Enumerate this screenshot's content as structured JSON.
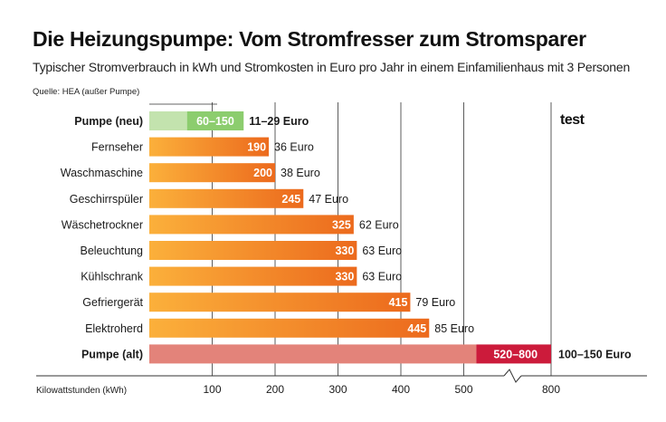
{
  "title": "Die Heizungspumpe: Vom Stromfresser zum Stromsparer",
  "subtitle": "Typischer Stromverbrauch in kWh und Stromkosten in Euro pro Jahr in einem Einfamilienhaus mit 3 Personen",
  "source": "Quelle: HEA (außer Pumpe)",
  "brand": "test",
  "chart_data": {
    "type": "bar",
    "orientation": "horizontal",
    "xlabel": "Kilowattstunden (kWh)",
    "xticks": [
      "100",
      "200",
      "300",
      "400",
      "500",
      "800"
    ],
    "axis_break": "between 500 and 800",
    "colors": {
      "pump_new_light": "#c3e3ae",
      "pump_new_dark": "#8ccd6e",
      "bar_light": "#fbb03b",
      "bar_dark": "#ec6a1d",
      "pump_old_light": "#e3837a",
      "pump_old_dark": "#cc1b3b"
    },
    "bars": [
      {
        "category": "Pumpe (neu)",
        "value": [
          60,
          150
        ],
        "value_label": "60–150",
        "cost_label": "11–29 Euro",
        "bold": true,
        "style": "pump_new"
      },
      {
        "category": "Fernseher",
        "value": 190,
        "value_label": "190",
        "cost_label": "36 Euro",
        "bold": false,
        "style": "normal"
      },
      {
        "category": "Waschmaschine",
        "value": 200,
        "value_label": "200",
        "cost_label": "38 Euro",
        "bold": false,
        "style": "normal"
      },
      {
        "category": "Geschirrspüler",
        "value": 245,
        "value_label": "245",
        "cost_label": "47 Euro",
        "bold": false,
        "style": "normal"
      },
      {
        "category": "Wäschetrockner",
        "value": 325,
        "value_label": "325",
        "cost_label": "62 Euro",
        "bold": false,
        "style": "normal"
      },
      {
        "category": "Beleuchtung",
        "value": 330,
        "value_label": "330",
        "cost_label": "63 Euro",
        "bold": false,
        "style": "normal"
      },
      {
        "category": "Kühlschrank",
        "value": 330,
        "value_label": "330",
        "cost_label": "63 Euro",
        "bold": false,
        "style": "normal"
      },
      {
        "category": "Gefriergerät",
        "value": 415,
        "value_label": "415",
        "cost_label": "79 Euro",
        "bold": false,
        "style": "normal"
      },
      {
        "category": "Elektroherd",
        "value": 445,
        "value_label": "445",
        "cost_label": "85 Euro",
        "bold": false,
        "style": "normal"
      },
      {
        "category": "Pumpe (alt)",
        "value": [
          520,
          800
        ],
        "value_label": "520–800",
        "cost_label": "100–150 Euro",
        "bold": true,
        "style": "pump_old"
      }
    ]
  }
}
